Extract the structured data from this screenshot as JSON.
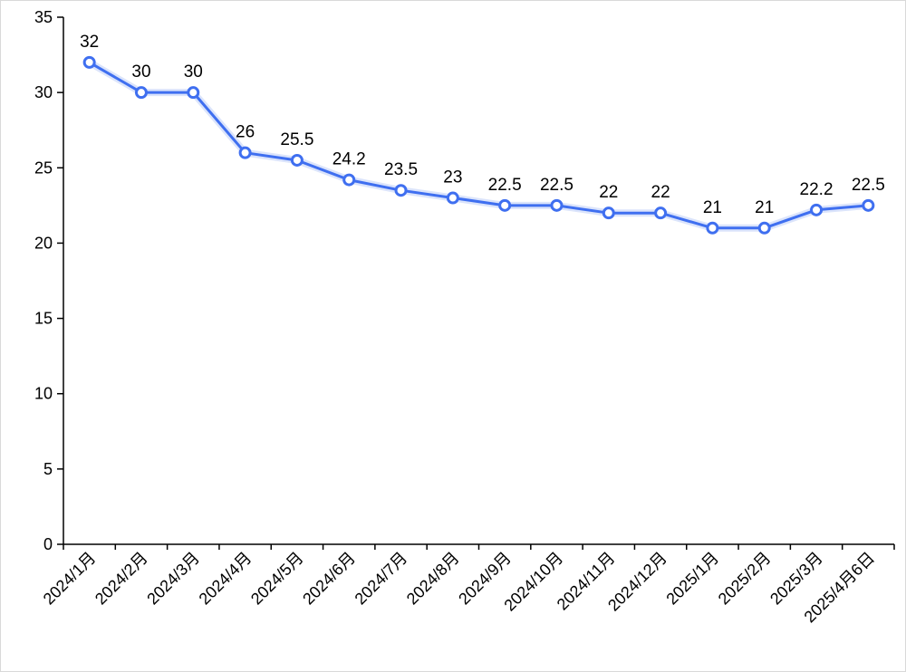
{
  "chart_data": {
    "type": "line",
    "title": "",
    "xlabel": "",
    "ylabel": "",
    "categories": [
      "2024/1月",
      "2024/2月",
      "2024/3月",
      "2024/4月",
      "2024/5月",
      "2024/6月",
      "2024/7月",
      "2024/8月",
      "2024/9月",
      "2024/10月",
      "2024/11月",
      "2024/12月",
      "2025/1月",
      "2025/2月",
      "2025/3月",
      "2025/4月6日"
    ],
    "series": [
      {
        "values": [
          32,
          30,
          30,
          26,
          25.5,
          24.2,
          23.5,
          23,
          22.5,
          22.5,
          22,
          22,
          21,
          21,
          22.2,
          22.5
        ],
        "labels": [
          "32",
          "30",
          "30",
          "26",
          "25.5",
          "24.2",
          "23.5",
          "23",
          "22.5",
          "22.5",
          "22",
          "22",
          "21",
          "21",
          "22.2",
          "22.5"
        ]
      }
    ],
    "ylim": [
      0,
      35
    ],
    "yticks": [
      0,
      5,
      10,
      15,
      20,
      25,
      30,
      35
    ],
    "ytick_labels": [
      "0",
      "5",
      "10",
      "15",
      "20",
      "25",
      "30",
      "35"
    ],
    "grid": false,
    "legend": "none",
    "line_color": "#3f6ff0",
    "marker_fill": "#ffffff"
  }
}
